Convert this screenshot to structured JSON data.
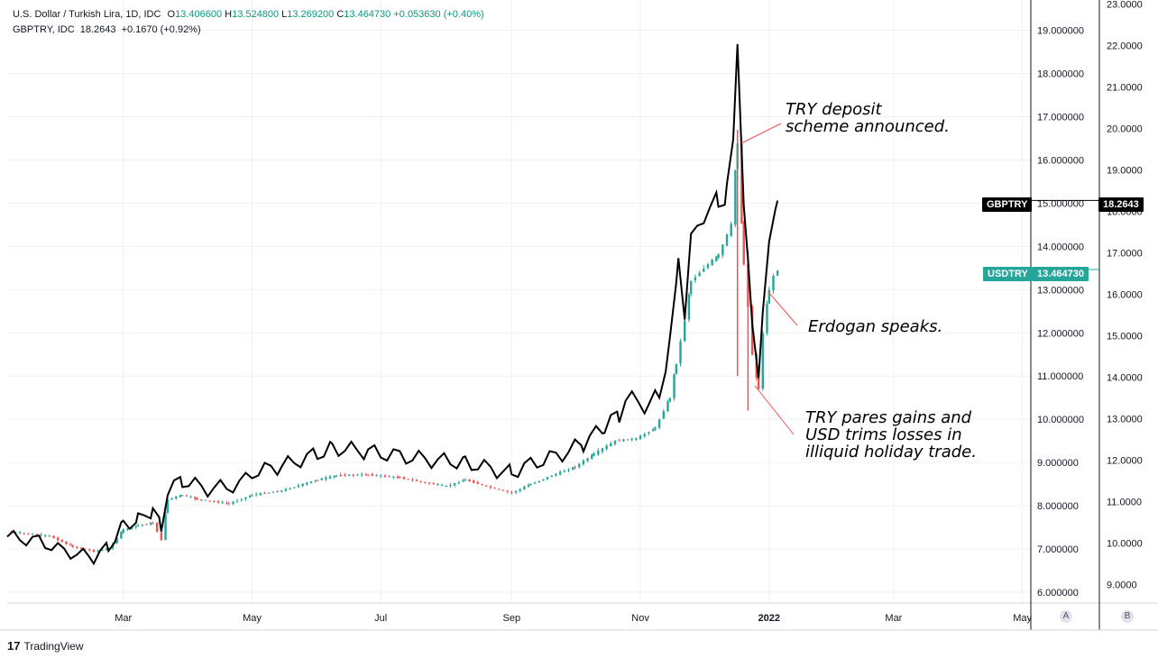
{
  "legend": {
    "line1": {
      "name": "U.S. Dollar / Turkish Lira, 1D, IDC",
      "o_label": "O",
      "o_value": "13.406600",
      "h_label": "H",
      "h_value": "13.524800",
      "l_label": "L",
      "l_value": "13.269200",
      "c_label": "C",
      "c_value": "13.464730",
      "change": "+0.053630 (+0.40%)"
    },
    "line2": {
      "name": "GBPTRY, IDC",
      "value": "18.2643",
      "change": "+0.1670 (+0.92%)"
    }
  },
  "annotations": {
    "deposit_line1": "TRY deposit",
    "deposit_line2": "scheme announced.",
    "erdogan": "Erdogan speaks.",
    "pares_line1": "TRY pares gains and",
    "pares_line2": "USD trims losses in",
    "pares_line3": "illiquid holiday trade."
  },
  "tags": {
    "gbptry_name": "GBPTRY",
    "gbptry_value": "18.2643",
    "usdtry_name": "USDTRY",
    "usdtry_value": "13.464730"
  },
  "scale_buttons": {
    "a": "A",
    "b": "B"
  },
  "branding": {
    "logo_mark": "17",
    "logo_text": "TradingView"
  },
  "colors": {
    "up": "#26a69a",
    "down": "#ef5350",
    "gbp_line": "#000000",
    "usd_tag": "#26a69a",
    "gbp_tag": "#000000",
    "arrow": "#ef5350",
    "grid": "#eef0f3"
  },
  "chart_data": {
    "type": "line",
    "title": "U.S. Dollar / Turkish Lira, 1D, IDC",
    "axes": {
      "left_scale": {
        "series": "USDTRY",
        "range": [
          5.75,
          19.7
        ],
        "ticks": [
          "6.000000",
          "7.000000",
          "8.000000",
          "9.000000",
          "10.000000",
          "11.000000",
          "12.000000",
          "13.000000",
          "14.000000",
          "15.000000",
          "16.000000",
          "17.000000",
          "18.000000",
          "19.000000"
        ]
      },
      "right_scale": {
        "series": "GBPTRY",
        "range": [
          8.55,
          23.1
        ],
        "ticks": [
          "9.0000",
          "10.0000",
          "11.0000",
          "12.0000",
          "13.0000",
          "14.0000",
          "15.0000",
          "16.0000",
          "17.0000",
          "18.0000",
          "19.0000",
          "20.0000",
          "21.0000",
          "22.0000",
          "23.0000"
        ]
      },
      "time_range": [
        "2021-01-05",
        "2022-05-05"
      ],
      "time_ticks": [
        {
          "label": "Mar",
          "date": "2021-03-01"
        },
        {
          "label": "May",
          "date": "2021-05-01"
        },
        {
          "label": "Jul",
          "date": "2021-07-01"
        },
        {
          "label": "Sep",
          "date": "2021-09-01"
        },
        {
          "label": "Nov",
          "date": "2021-11-01"
        },
        {
          "label": "2022",
          "date": "2022-01-01"
        },
        {
          "label": "Mar",
          "date": "2022-03-01"
        },
        {
          "label": "May",
          "date": "2022-05-01"
        }
      ]
    },
    "series": [
      {
        "name": "USDTRY",
        "style": "candlestick",
        "points": [
          [
            "2021-01-05",
            7.4
          ],
          [
            "2021-01-15",
            7.35
          ],
          [
            "2021-01-25",
            7.3
          ],
          [
            "2021-02-05",
            7.05
          ],
          [
            "2021-02-15",
            6.95
          ],
          [
            "2021-02-22",
            7.0
          ],
          [
            "2021-03-01",
            7.45
          ],
          [
            "2021-03-08",
            7.55
          ],
          [
            "2021-03-15",
            7.6
          ],
          [
            "2021-03-19",
            7.2
          ],
          [
            "2021-03-22",
            8.15
          ],
          [
            "2021-03-29",
            8.25
          ],
          [
            "2021-04-05",
            8.15
          ],
          [
            "2021-04-20",
            8.05
          ],
          [
            "2021-05-01",
            8.25
          ],
          [
            "2021-05-15",
            8.35
          ],
          [
            "2021-06-01",
            8.6
          ],
          [
            "2021-06-10",
            8.7
          ],
          [
            "2021-06-25",
            8.72
          ],
          [
            "2021-07-10",
            8.65
          ],
          [
            "2021-07-20",
            8.55
          ],
          [
            "2021-08-01",
            8.45
          ],
          [
            "2021-08-10",
            8.6
          ],
          [
            "2021-08-20",
            8.45
          ],
          [
            "2021-09-01",
            8.3
          ],
          [
            "2021-09-10",
            8.5
          ],
          [
            "2021-09-20",
            8.7
          ],
          [
            "2021-10-01",
            8.9
          ],
          [
            "2021-10-10",
            9.2
          ],
          [
            "2021-10-20",
            9.5
          ],
          [
            "2021-10-30",
            9.55
          ],
          [
            "2021-11-08",
            9.8
          ],
          [
            "2021-11-15",
            10.5
          ],
          [
            "2021-11-18",
            11.3
          ],
          [
            "2021-11-22",
            12.3
          ],
          [
            "2021-11-25",
            13.2
          ],
          [
            "2021-12-01",
            13.5
          ],
          [
            "2021-12-08",
            13.8
          ],
          [
            "2021-12-14",
            14.5
          ],
          [
            "2021-12-17",
            16.4
          ],
          [
            "2021-12-20",
            13.6
          ],
          [
            "2021-12-22",
            12.6
          ],
          [
            "2021-12-24",
            11.5
          ],
          [
            "2021-12-27",
            10.7
          ],
          [
            "2021-12-29",
            12.0
          ],
          [
            "2022-01-01",
            13.0
          ],
          [
            "2022-01-03",
            13.3
          ],
          [
            "2022-01-05",
            13.46
          ]
        ]
      },
      {
        "name": "GBPTRY",
        "style": "line",
        "points": [
          [
            "2021-01-05",
            10.15
          ],
          [
            "2021-01-20",
            10.05
          ],
          [
            "2021-02-01",
            9.8
          ],
          [
            "2021-02-15",
            9.65
          ],
          [
            "2021-02-22",
            9.9
          ],
          [
            "2021-03-01",
            10.45
          ],
          [
            "2021-03-08",
            10.55
          ],
          [
            "2021-03-15",
            10.8
          ],
          [
            "2021-03-19",
            10.35
          ],
          [
            "2021-03-22",
            11.3
          ],
          [
            "2021-03-29",
            11.5
          ],
          [
            "2021-04-10",
            11.3
          ],
          [
            "2021-04-25",
            11.4
          ],
          [
            "2021-05-01",
            11.7
          ],
          [
            "2021-05-15",
            11.85
          ],
          [
            "2021-06-01",
            12.15
          ],
          [
            "2021-06-08",
            12.3
          ],
          [
            "2021-06-25",
            12.2
          ],
          [
            "2021-07-10",
            12.1
          ],
          [
            "2021-07-25",
            12.0
          ],
          [
            "2021-08-10",
            11.95
          ],
          [
            "2021-08-25",
            11.75
          ],
          [
            "2021-09-01",
            11.7
          ],
          [
            "2021-09-10",
            11.9
          ],
          [
            "2021-09-25",
            12.15
          ],
          [
            "2021-10-05",
            12.4
          ],
          [
            "2021-10-15",
            12.8
          ],
          [
            "2021-10-22",
            13.1
          ],
          [
            "2021-10-25",
            13.5
          ],
          [
            "2021-11-05",
            13.3
          ],
          [
            "2021-11-10",
            13.6
          ],
          [
            "2021-11-15",
            14.8
          ],
          [
            "2021-11-18",
            16.1
          ],
          [
            "2021-11-19",
            17.1
          ],
          [
            "2021-11-22",
            15.5
          ],
          [
            "2021-11-25",
            17.2
          ],
          [
            "2021-12-01",
            18.0
          ],
          [
            "2021-12-08",
            18.2
          ],
          [
            "2021-12-12",
            18.5
          ],
          [
            "2021-12-15",
            19.5
          ],
          [
            "2021-12-17",
            22.3
          ],
          [
            "2021-12-20",
            18.3
          ],
          [
            "2021-12-22",
            16.6
          ],
          [
            "2021-12-24",
            15.2
          ],
          [
            "2021-12-27",
            14.2
          ],
          [
            "2021-12-29",
            15.6
          ],
          [
            "2022-01-01",
            17.0
          ],
          [
            "2022-01-04",
            18.1
          ],
          [
            "2022-01-05",
            18.26
          ]
        ]
      }
    ],
    "annotations": [
      "TRY deposit scheme announced.",
      "Erdogan speaks.",
      "TRY pares gains and USD trims losses in illiquid holiday trade."
    ]
  }
}
